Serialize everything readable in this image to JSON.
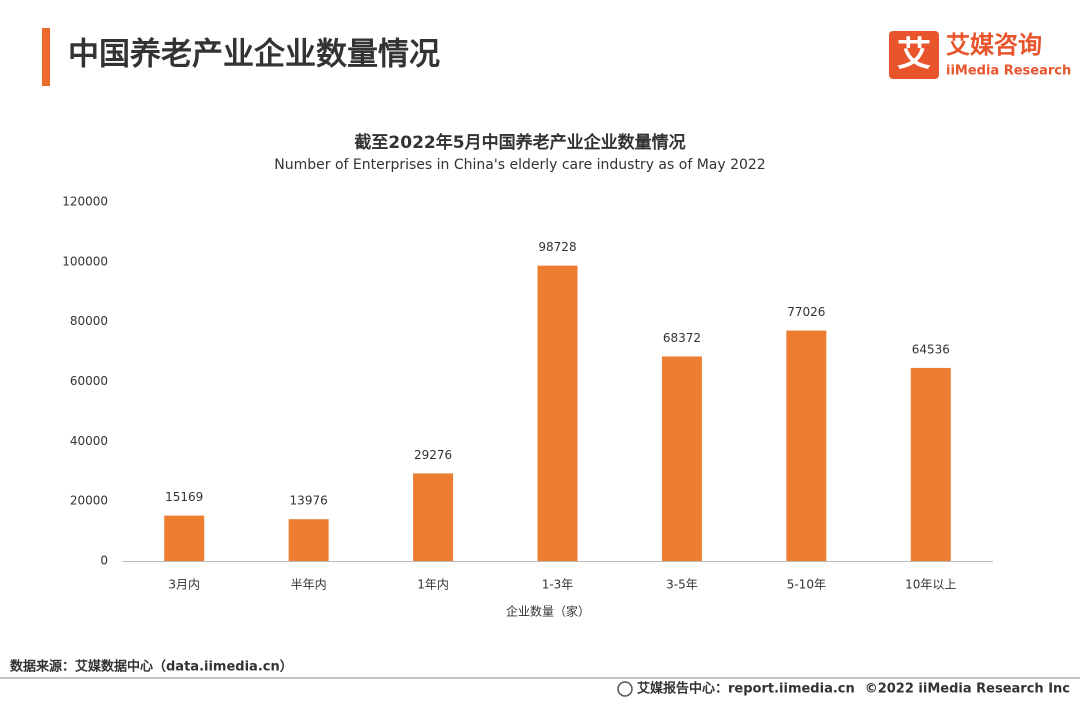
{
  "header": {
    "title": "中国养老产业企业数量情况"
  },
  "logo": {
    "mark": "艾",
    "name": "艾媒咨询",
    "sub": "iiMedia Research"
  },
  "chart_data": {
    "type": "bar",
    "title": "截至2022年5月中国养老产业企业数量情况",
    "subtitle": "Number of Enterprises in China's elderly care industry as of May 2022",
    "x_label": "企业数量（家）",
    "categories": [
      "3月内",
      "半年内",
      "1年内",
      "1-3年",
      "3-5年",
      "5-10年",
      "10年以上"
    ],
    "values": [
      15169,
      13976,
      29276,
      98728,
      68372,
      77026,
      64536
    ],
    "color": "#ed7d31",
    "ylim": [
      0,
      120000
    ],
    "yticks": [
      0,
      20000,
      40000,
      60000,
      80000,
      100000,
      120000
    ],
    "grid": false
  },
  "footer": {
    "source": "数据来源：艾媒数据中心（data.iimedia.cn）",
    "report": "艾媒报告中心：report.iimedia.cn",
    "copyright": "©2022  iiMedia Research  Inc"
  }
}
